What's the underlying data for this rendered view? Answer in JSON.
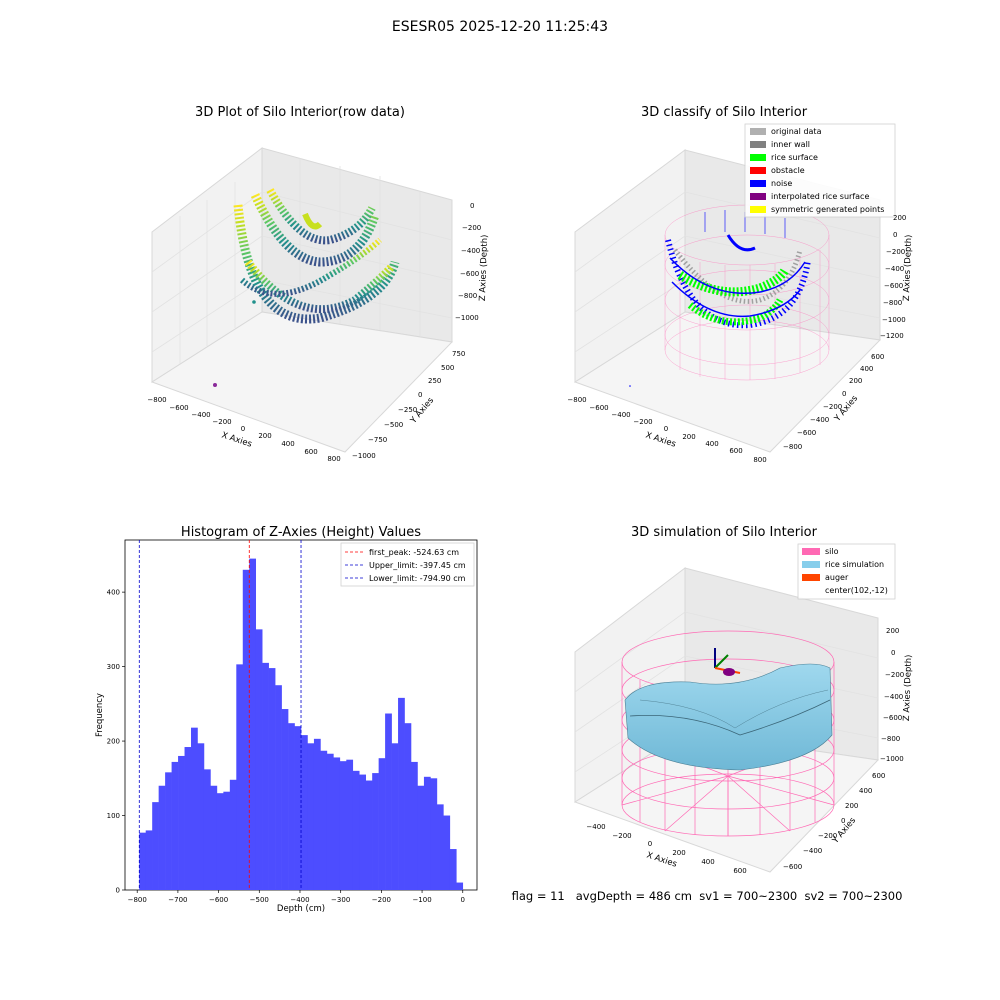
{
  "figure": {
    "suptitle": "ESESR05 2025-12-20 11:25:43",
    "footer": "flag = 11   avgDepth = 486 cm  sv1 = 700~2300  sv2 = 700~2300"
  },
  "colors": {
    "viridis": [
      "#440154",
      "#3b528b",
      "#21918c",
      "#5ec962",
      "#c8e020",
      "#fde725"
    ],
    "original_data": "#b0b0b0",
    "inner_wall": "#808080",
    "rice_surface": "#00ff00",
    "obstacle": "#ff0000",
    "noise": "#0000ff",
    "interpolated_rice_surface": "#800080",
    "symmetric_generated_points": "#ffff00",
    "silo": "#ff69b4",
    "rice_simulation": "#87ceeb",
    "auger": "#ff4500",
    "hist_bar": "#4d4dff",
    "first_peak_line": "#ff0000",
    "limit_line": "#0000cc"
  },
  "panel_raw": {
    "title": "3D Plot of Silo Interior(row data)",
    "xlabel": "X Axies",
    "ylabel": "Y Axies",
    "zlabel": "Z Axies (Depth)",
    "x_ticks": [
      "−800",
      "−600",
      "−400",
      "−200",
      "0",
      "200",
      "400",
      "600",
      "800"
    ],
    "y_ticks": [
      "−1000",
      "−750",
      "−500",
      "−250",
      "0",
      "250",
      "500",
      "750"
    ],
    "z_ticks": [
      "−1000",
      "−800",
      "−600",
      "−400",
      "−200",
      "0"
    ]
  },
  "panel_classify": {
    "title": "3D classify of Silo Interior",
    "xlabel": "X Axies",
    "ylabel": "Y Axies",
    "zlabel": "Z Axies (Depth)",
    "x_ticks": [
      "−800",
      "−600",
      "−400",
      "−200",
      "0",
      "200",
      "400",
      "600",
      "800"
    ],
    "y_ticks": [
      "−800",
      "−600",
      "−400",
      "−200",
      "0",
      "200",
      "400",
      "600"
    ],
    "z_ticks": [
      "−1200",
      "−1000",
      "−800",
      "−600",
      "−400",
      "−200",
      "0",
      "200"
    ],
    "legend": [
      {
        "label": "original data",
        "color": "#b0b0b0"
      },
      {
        "label": "inner wall",
        "color": "#808080"
      },
      {
        "label": "rice surface",
        "color": "#00ff00"
      },
      {
        "label": "obstacle",
        "color": "#ff0000"
      },
      {
        "label": "noise",
        "color": "#0000ff"
      },
      {
        "label": "interpolated rice surface",
        "color": "#800080"
      },
      {
        "label": "symmetric generated points",
        "color": "#ffff00"
      }
    ]
  },
  "panel_sim": {
    "title": "3D simulation of Silo Interior",
    "xlabel": "X Axies",
    "ylabel": "Y Axies",
    "zlabel": "Z Axies (Depth)",
    "x_ticks": [
      "−400",
      "−200",
      "0",
      "200",
      "400",
      "600"
    ],
    "y_ticks": [
      "−600",
      "−400",
      "−200",
      "0",
      "200",
      "400",
      "600"
    ],
    "z_ticks": [
      "−1000",
      "−800",
      "−600",
      "−400",
      "−200",
      "0",
      "200"
    ],
    "legend": [
      {
        "label": "silo",
        "color": "#ff69b4"
      },
      {
        "label": "rice simulation",
        "color": "#87ceeb"
      },
      {
        "label": "auger",
        "color": "#ff4500"
      },
      {
        "label": "center(102,-12)",
        "color": ""
      }
    ]
  },
  "chart_data": [
    {
      "type": "bar",
      "title": "Histogram of Z-Axies (Height) Values",
      "xlabel": "Depth (cm)",
      "ylabel": "Frequency",
      "xlim": [
        -830,
        35
      ],
      "ylim": [
        0,
        470
      ],
      "x_ticks": [
        -800,
        -700,
        -600,
        -500,
        -400,
        -300,
        -200,
        -100,
        0
      ],
      "x_tick_labels": [
        "−800",
        "−700",
        "−600",
        "−500",
        "−400",
        "−300",
        "−200",
        "−100",
        "0"
      ],
      "y_ticks": [
        0,
        100,
        200,
        300,
        400
      ],
      "bin_start": -795,
      "bin_width": 15.9,
      "values": [
        77,
        80,
        118,
        140,
        158,
        172,
        180,
        192,
        218,
        197,
        162,
        140,
        130,
        132,
        148,
        303,
        430,
        445,
        350,
        305,
        298,
        275,
        243,
        224,
        220,
        208,
        197,
        203,
        187,
        183,
        178,
        173,
        175,
        160,
        155,
        147,
        157,
        177,
        237,
        197,
        258,
        224,
        172,
        140,
        152,
        150,
        115,
        100,
        55,
        10
      ],
      "vlines": [
        {
          "name": "first_peak: -524.63 cm",
          "x": -524.63,
          "color": "#ff0000"
        },
        {
          "name": "Upper_limit: -397.45 cm",
          "x": -397.45,
          "color": "#0000cc"
        },
        {
          "name": "Lower_limit: -794.90 cm",
          "x": -794.9,
          "color": "#0000cc"
        }
      ],
      "legend_placement": "upper right"
    }
  ]
}
